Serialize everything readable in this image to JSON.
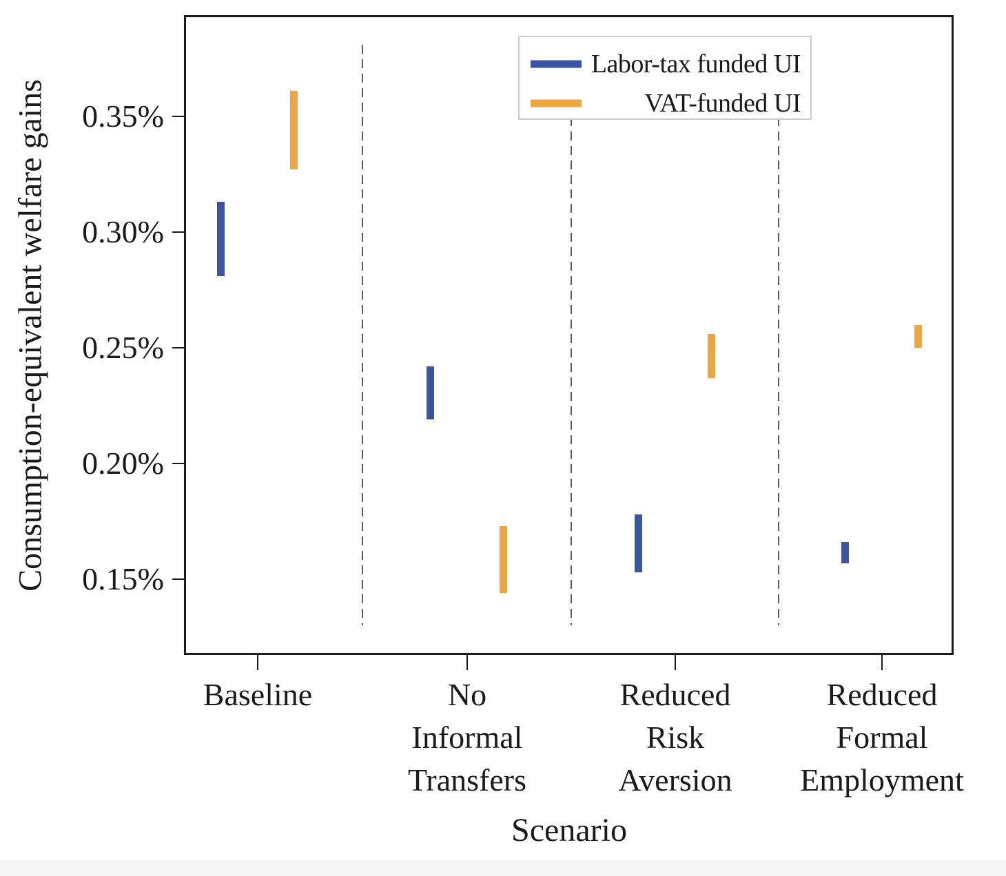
{
  "chart_data": {
    "type": "bar",
    "subtype": "floating-range-bars",
    "title": "",
    "xlabel": "Scenario",
    "ylabel": "Consumption-equivalent welfare gains",
    "categories": [
      [
        "Baseline"
      ],
      [
        "No",
        "Informal",
        "Transfers"
      ],
      [
        "Reduced",
        "Risk",
        "Aversion"
      ],
      [
        "Reduced",
        "Formal",
        "Employment"
      ]
    ],
    "series": [
      {
        "name": "Labor-tax funded UI",
        "color": "#3B54A4",
        "ranges_pct": [
          [
            0.281,
            0.313
          ],
          [
            0.219,
            0.242
          ],
          [
            0.153,
            0.178
          ],
          [
            0.157,
            0.166
          ]
        ]
      },
      {
        "name": "VAT-funded UI",
        "color": "#F0A63F",
        "ranges_pct": [
          [
            0.327,
            0.361
          ],
          [
            0.144,
            0.173
          ],
          [
            0.237,
            0.256
          ],
          [
            0.25,
            0.26
          ]
        ]
      }
    ],
    "yticks": {
      "values": [
        0.15,
        0.2,
        0.25,
        0.3,
        0.35
      ],
      "labels": [
        "0.15%",
        "0.20%",
        "0.25%",
        "0.30%",
        "0.35%"
      ]
    },
    "ylim": [
      0.1176,
      0.3935
    ],
    "grid": false,
    "separators_between_groups": true,
    "legend": {
      "position": "upper right"
    }
  },
  "colors": {
    "labor_tax_blue": "#3B54A4",
    "vat_orange": "#F0A63F",
    "axis": "#1b1b1b",
    "separator": "#5a5a5a",
    "legend_border": "#cccccc",
    "text": "#1a1a1a"
  }
}
